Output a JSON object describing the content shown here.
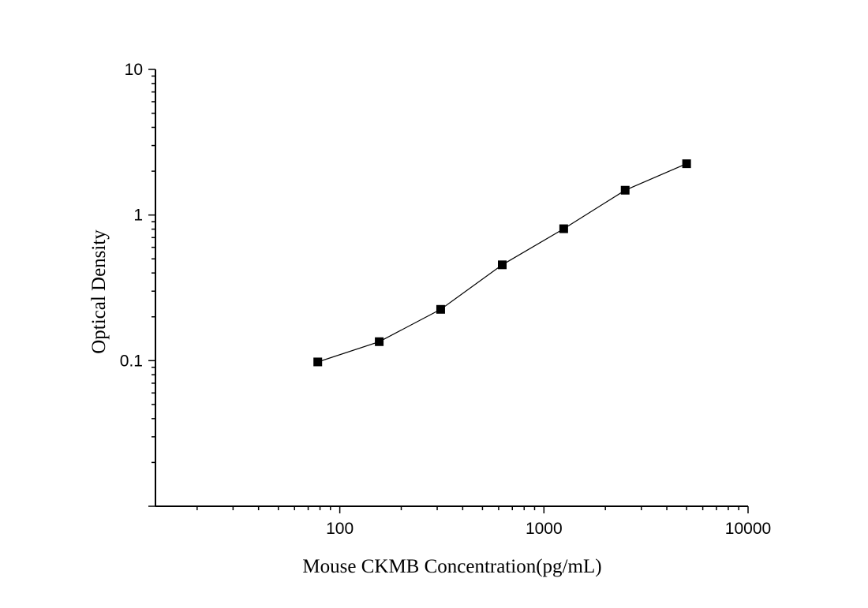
{
  "chart_data": {
    "type": "line",
    "xlabel": "Mouse CKMB Concentration(pg/mL)",
    "ylabel": "Optical Density",
    "xscale": "log",
    "yscale": "log",
    "xlim": [
      12.5,
      10000
    ],
    "ylim": [
      0.01,
      10
    ],
    "x_tick_labels": [
      "100",
      "1000",
      "10000"
    ],
    "x_tick_values": [
      100,
      1000,
      10000
    ],
    "y_tick_labels": [
      "0.1",
      "1",
      "10"
    ],
    "y_tick_values": [
      0.1,
      1,
      10
    ],
    "grid": false,
    "series": [
      {
        "marker": "square",
        "color": "#000000",
        "x": [
          78,
          156,
          312,
          625,
          1250,
          2500,
          5000
        ],
        "y": [
          0.098,
          0.135,
          0.225,
          0.455,
          0.805,
          1.48,
          2.25
        ]
      }
    ]
  }
}
